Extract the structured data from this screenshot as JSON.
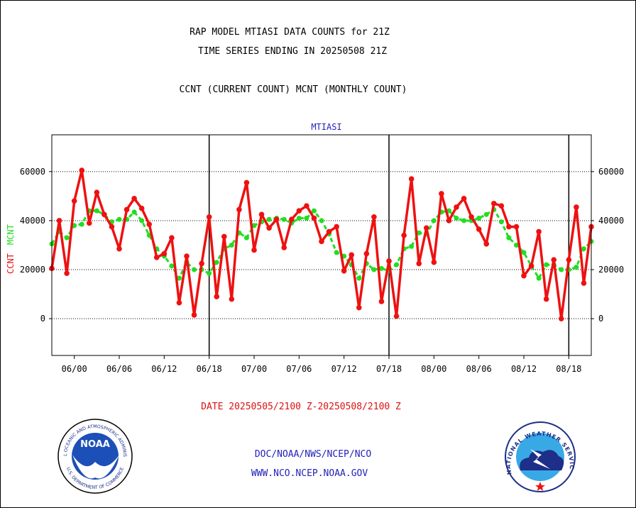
{
  "header": {
    "title_line1": "RAP MODEL MTIASI DATA COUNTS for 21Z",
    "title_line2": "TIME SERIES ENDING IN 20250508 21Z",
    "subtitle": "CCNT (CURRENT COUNT) MCNT (MONTHLY COUNT)"
  },
  "chart_data": {
    "type": "line",
    "title": "MTIASI",
    "xlabel": "DATE 20250505/2100 Z-20250508/2100 Z",
    "ylabel_ccnt": "CCNT",
    "ylabel_mcnt": "MCNT",
    "ylim": [
      -15000,
      75000
    ],
    "yticks": [
      0,
      20000,
      40000,
      60000
    ],
    "ytick_labels": [
      "0",
      "20000",
      "40000",
      "60000"
    ],
    "xlim": [
      0,
      72
    ],
    "xticks": [
      3,
      9,
      15,
      21,
      27,
      33,
      39,
      45,
      51,
      57,
      63,
      69
    ],
    "xtick_labels": [
      "06/00",
      "06/06",
      "06/12",
      "06/18",
      "07/00",
      "07/06",
      "07/12",
      "07/18",
      "08/00",
      "08/06",
      "08/12",
      "08/18"
    ],
    "day_separators": [
      21,
      45,
      69
    ],
    "grid": true,
    "colors": {
      "ccnt": "#ee1111",
      "mcnt": "#22dd22",
      "title": "#2222bb",
      "xlabel": "#dd1111"
    },
    "series": [
      {
        "name": "CCNT",
        "x": [
          0,
          1,
          2,
          3,
          4,
          5,
          6,
          7,
          8,
          9,
          10,
          11,
          12,
          13,
          14,
          15,
          16,
          17,
          18,
          19,
          20,
          21,
          22,
          23,
          24,
          25,
          26,
          27,
          28,
          29,
          30,
          31,
          32,
          33,
          34,
          35,
          36,
          37,
          38,
          39,
          40,
          41,
          42,
          43,
          44,
          45,
          46,
          47,
          48,
          49,
          50,
          51,
          52,
          53,
          54,
          55,
          56,
          57,
          58,
          59,
          60,
          61,
          62,
          63,
          64,
          65,
          66,
          67,
          68,
          69,
          70,
          71,
          72
        ],
        "values": [
          20500,
          40000,
          18500,
          48000,
          60500,
          39000,
          51500,
          42500,
          37500,
          28500,
          44500,
          49000,
          45000,
          38500,
          25000,
          26500,
          33000,
          6500,
          25500,
          1500,
          22500,
          41500,
          9000,
          33500,
          8000,
          44500,
          55500,
          28000,
          42500,
          37000,
          40500,
          29000,
          40500,
          44000,
          46000,
          41000,
          31500,
          35500,
          37500,
          19500,
          26000,
          4500,
          26500,
          41500,
          7000,
          23500,
          1000,
          34000,
          57000,
          22500,
          37000,
          23000,
          51000,
          40000,
          45500,
          49000,
          41500,
          36500,
          30500,
          47000,
          46000,
          37500,
          37500,
          17500,
          21500,
          35500,
          8000,
          24000,
          0,
          24000,
          45500,
          14500,
          37500
        ]
      },
      {
        "name": "MCNT",
        "x": [
          0,
          1,
          2,
          3,
          4,
          5,
          6,
          7,
          8,
          9,
          10,
          11,
          12,
          13,
          14,
          15,
          16,
          17,
          18,
          19,
          20,
          21,
          22,
          23,
          24,
          25,
          26,
          27,
          28,
          29,
          30,
          31,
          32,
          33,
          34,
          35,
          36,
          37,
          38,
          39,
          40,
          41,
          42,
          43,
          44,
          45,
          46,
          47,
          48,
          49,
          50,
          51,
          52,
          53,
          54,
          55,
          56,
          57,
          58,
          59,
          60,
          61,
          62,
          63,
          64,
          65,
          66,
          67,
          68,
          69,
          70,
          71,
          72
        ],
        "values": [
          30500,
          35500,
          33000,
          38000,
          38500,
          44000,
          44000,
          42500,
          39500,
          40500,
          40500,
          43500,
          40000,
          34000,
          28500,
          25500,
          21500,
          16500,
          23000,
          20000,
          20000,
          18500,
          23000,
          28500,
          30000,
          35000,
          33000,
          38000,
          39500,
          40500,
          41000,
          40500,
          39000,
          41000,
          41000,
          44000,
          40000,
          34500,
          27000,
          25500,
          22000,
          16500,
          22500,
          20000,
          20500,
          19500,
          22000,
          28500,
          29500,
          35000,
          34500,
          40000,
          43500,
          44000,
          41000,
          40000,
          40000,
          41000,
          42500,
          44500,
          39500,
          33000,
          30000,
          27000,
          21500,
          16500,
          22000,
          22000,
          20000,
          20000,
          21000,
          28500,
          31500
        ]
      }
    ]
  },
  "footer": {
    "org": "DOC/NOAA/NWS/NCEP/NCO",
    "url": "WWW.NCO.NCEP.NOAA.GOV",
    "noaa_logo_text": "NOAA",
    "noaa_ring_top": "NATIONAL OCEANIC AND ATMOSPHERIC ADMINISTRATION",
    "noaa_ring_bottom": "U.S. DEPARTMENT OF COMMERCE",
    "nws_ring_text": "NATIONAL WEATHER SERVICE"
  }
}
